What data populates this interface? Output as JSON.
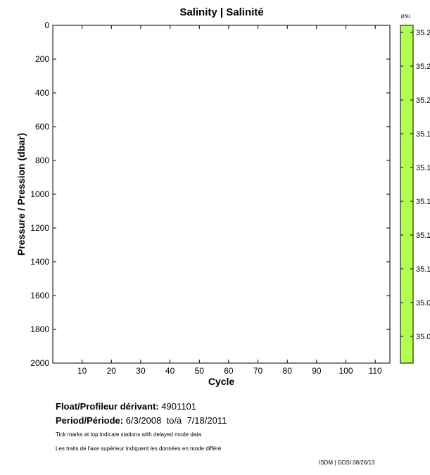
{
  "chart_data": {
    "type": "heatmap",
    "title": "Salinity | Salinité",
    "xlabel": "Cycle",
    "ylabel": "Pressure / Pression (dbar)",
    "xlim": [
      0,
      115
    ],
    "ylim": [
      0,
      2000
    ],
    "y_reversed": true,
    "xticks": [
      10,
      20,
      30,
      40,
      50,
      60,
      70,
      80,
      90,
      100,
      110
    ],
    "yticks": [
      0,
      200,
      400,
      600,
      800,
      1000,
      1200,
      1400,
      1600,
      1800,
      2000
    ],
    "grid": false,
    "values": [],
    "colorbar": {
      "unit": "psu",
      "color": "#b3ff4d",
      "tick_labels": [
        "35.2",
        "35.2",
        "35.2",
        "35.1",
        "35.1",
        "35.1",
        "35.1",
        "35.1",
        "35.0",
        "35.0"
      ]
    }
  },
  "info": {
    "float_label": "Float/Profileur dérivant:",
    "float_value": "4901101",
    "period_label": "Period/Période:",
    "period_start": "6/3/2008",
    "period_to": "to/à",
    "period_end": "7/18/2011",
    "note_en": "Tick marks at top indicate stations with delayed mode data",
    "note_fr": "Les traits de l'axe supérieur indiquent les données en mode différé",
    "credit": "ISDM | GDSI  08/26/13"
  }
}
